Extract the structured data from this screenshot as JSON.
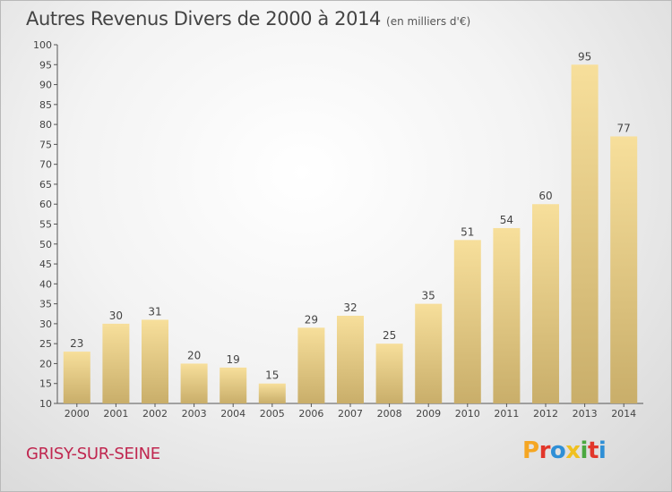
{
  "header": {
    "title": "Autres Revenus Divers de 2000 à 2014",
    "unit": "(en milliers d'€)"
  },
  "footer": {
    "commune": "GRISY-SUR-SEINE",
    "logo": "Proxiti"
  },
  "colors": {
    "bar_light": "#f7df9b",
    "bar_dark": "#c9ae6a",
    "commune": "#c0264f",
    "logo_letters": [
      "#f5a623",
      "#e2362a",
      "#2f8fd6",
      "#f0c020",
      "#4aa83f",
      "#e2362a",
      "#2f8fd6"
    ]
  },
  "chart_data": {
    "type": "bar",
    "title": "Autres Revenus Divers de 2000 à 2014",
    "xlabel": "",
    "ylabel": "",
    "categories": [
      "2000",
      "2001",
      "2002",
      "2003",
      "2004",
      "2005",
      "2006",
      "2007",
      "2008",
      "2009",
      "2010",
      "2011",
      "2012",
      "2013",
      "2014"
    ],
    "values": [
      23,
      30,
      31,
      20,
      19,
      15,
      29,
      32,
      25,
      35,
      51,
      54,
      60,
      95,
      77
    ],
    "ylim": [
      10,
      100
    ],
    "yticks": [
      10,
      15,
      20,
      25,
      30,
      35,
      40,
      45,
      50,
      55,
      60,
      65,
      70,
      75,
      80,
      85,
      90,
      95,
      100
    ],
    "grid": false,
    "legend": "none"
  }
}
